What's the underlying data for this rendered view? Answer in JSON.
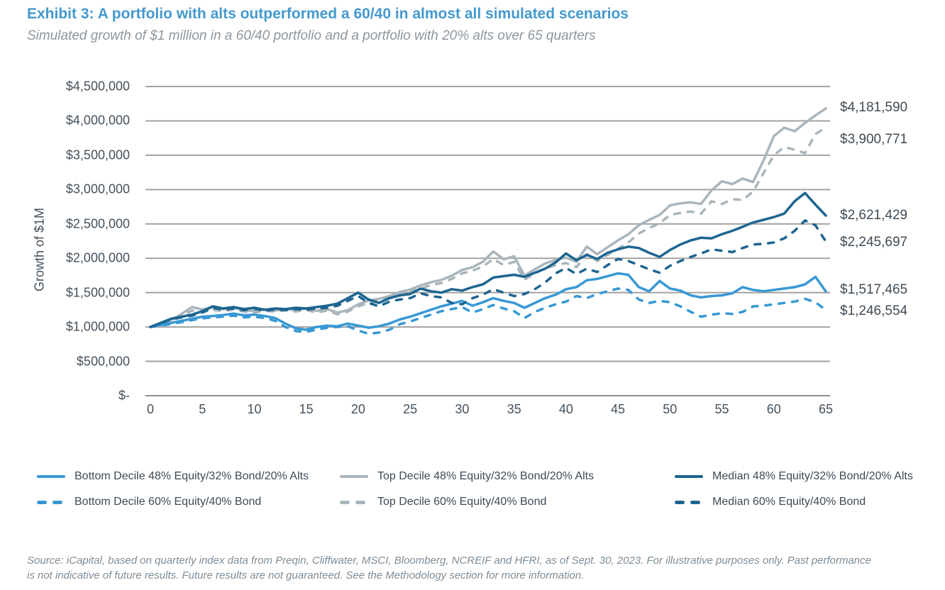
{
  "header": {
    "title": "Exhibit 3: A portfolio with alts outperformed a 60/40 in almost all simulated scenarios",
    "subtitle": "Simulated growth of $1 million in a 60/40 portfolio and a portfolio with 20% alts over 65 quarters"
  },
  "colors": {
    "title_blue": "#4499cf",
    "light_blue_line": "#3898d4",
    "gray_line": "#a9b5bc",
    "dark_blue_line": "#1d6590",
    "gridline": "#a2a2a2",
    "axis_line": "#8d8d8d",
    "axis_text": "#44515c"
  },
  "chart_data": {
    "type": "line",
    "title": "Exhibit 3: A portfolio with alts outperformed a 60/40 in almost all simulated scenarios",
    "subtitle": "Simulated growth of $1 million in a 60/40 portfolio and a portfolio with 20% alts over 65 quarters",
    "xlabel": "",
    "ylabel": "Growth of $1M",
    "xlim": [
      0,
      65
    ],
    "ylim": [
      0,
      4500000
    ],
    "grid": true,
    "legend_position": "bottom",
    "x_start": 0,
    "x_step": 1,
    "x_ticks": [
      0,
      5,
      10,
      15,
      20,
      25,
      30,
      35,
      40,
      45,
      50,
      55,
      60,
      65
    ],
    "y_ticks": [
      {
        "label": "$4,500,000",
        "value": 4500000
      },
      {
        "label": "$4,000,000",
        "value": 4000000
      },
      {
        "label": "$3,500,000",
        "value": 3500000
      },
      {
        "label": "$3,000,000",
        "value": 3000000
      },
      {
        "label": "$2,500,000",
        "value": 2500000
      },
      {
        "label": "$2,000,000",
        "value": 2000000
      },
      {
        "label": "$1,500,000",
        "value": 1500000
      },
      {
        "label": "$1,000,000",
        "value": 1000000
      },
      {
        "label": "$500,000",
        "value": 500000
      },
      {
        "label": "$-",
        "value": 0
      }
    ],
    "series": [
      {
        "name": "Bottom Decile 48% Equity/32% Bond/20% Alts",
        "style": "solid",
        "color": "#3898d4",
        "end_label": "$1,517,465",
        "values": [
          1000000,
          1030000,
          1060000,
          1090000,
          1120000,
          1150000,
          1160000,
          1175000,
          1195000,
          1170000,
          1180000,
          1160000,
          1130000,
          1050000,
          980000,
          960000,
          1000000,
          1020000,
          1010000,
          1050000,
          1020000,
          990000,
          1010000,
          1050000,
          1110000,
          1150000,
          1200000,
          1250000,
          1300000,
          1340000,
          1380000,
          1310000,
          1360000,
          1420000,
          1380000,
          1350000,
          1280000,
          1350000,
          1420000,
          1470000,
          1550000,
          1580000,
          1680000,
          1700000,
          1740000,
          1780000,
          1760000,
          1580000,
          1520000,
          1670000,
          1560000,
          1530000,
          1460000,
          1430000,
          1450000,
          1460000,
          1490000,
          1580000,
          1540000,
          1520000,
          1540000,
          1560000,
          1580000,
          1620000,
          1730000,
          1517465
        ]
      },
      {
        "name": "Top Decile 48% Equity/32% Bond/20% Alts",
        "style": "solid",
        "color": "#a9b5bc",
        "end_label": "$4,181,590",
        "values": [
          1000000,
          1045000,
          1100000,
          1190000,
          1290000,
          1255000,
          1285000,
          1260000,
          1280000,
          1245000,
          1230000,
          1255000,
          1240000,
          1260000,
          1245000,
          1270000,
          1235000,
          1260000,
          1210000,
          1245000,
          1330000,
          1385000,
          1410000,
          1450000,
          1510000,
          1545000,
          1605000,
          1650000,
          1685000,
          1745000,
          1830000,
          1870000,
          1950000,
          2100000,
          1985000,
          2030000,
          1745000,
          1840000,
          1925000,
          1975000,
          2010000,
          1950000,
          2170000,
          2060000,
          2160000,
          2260000,
          2350000,
          2480000,
          2560000,
          2630000,
          2770000,
          2800000,
          2815000,
          2790000,
          2990000,
          3120000,
          3080000,
          3160000,
          3110000,
          3420000,
          3780000,
          3900000,
          3850000,
          3970000,
          4080000,
          4181590
        ]
      },
      {
        "name": "Median 48% Equity/32% Bond/20% Alts",
        "style": "solid",
        "color": "#1d6590",
        "end_label": "$2,621,429",
        "values": [
          1000000,
          1060000,
          1120000,
          1150000,
          1180000,
          1230000,
          1300000,
          1270000,
          1290000,
          1260000,
          1280000,
          1250000,
          1270000,
          1260000,
          1280000,
          1270000,
          1290000,
          1310000,
          1340000,
          1420000,
          1500000,
          1400000,
          1350000,
          1420000,
          1460000,
          1480000,
          1560000,
          1520000,
          1500000,
          1550000,
          1530000,
          1580000,
          1620000,
          1720000,
          1740000,
          1760000,
          1730000,
          1790000,
          1850000,
          1940000,
          2070000,
          1970000,
          2050000,
          1990000,
          2080000,
          2130000,
          2170000,
          2150000,
          2080000,
          2020000,
          2120000,
          2200000,
          2260000,
          2300000,
          2290000,
          2350000,
          2400000,
          2460000,
          2520000,
          2560000,
          2600000,
          2650000,
          2830000,
          2950000,
          2780000,
          2621429
        ]
      },
      {
        "name": "Bottom Decile 60% Equity/40% Bond",
        "style": "dashed",
        "color": "#3898d4",
        "end_label": "$1,246,554",
        "values": [
          1000000,
          1020000,
          1045000,
          1070000,
          1100000,
          1125000,
          1140000,
          1150000,
          1165000,
          1140000,
          1150000,
          1130000,
          1090000,
          1000000,
          940000,
          930000,
          960000,
          990000,
          1000000,
          1010000,
          950000,
          900000,
          920000,
          960000,
          1040000,
          1080000,
          1130000,
          1180000,
          1230000,
          1260000,
          1290000,
          1210000,
          1260000,
          1320000,
          1270000,
          1230000,
          1130000,
          1220000,
          1280000,
          1330000,
          1370000,
          1450000,
          1420000,
          1480000,
          1520000,
          1560000,
          1540000,
          1400000,
          1350000,
          1380000,
          1360000,
          1300000,
          1220000,
          1150000,
          1180000,
          1200000,
          1190000,
          1220000,
          1300000,
          1310000,
          1330000,
          1350000,
          1370000,
          1410000,
          1360000,
          1246554
        ]
      },
      {
        "name": "Top Decile 60% Equity/40% Bond",
        "style": "dashed",
        "color": "#a9b5bc",
        "end_label": "$3,900,771",
        "values": [
          1000000,
          1040000,
          1085000,
          1160000,
          1240000,
          1215000,
          1250000,
          1230000,
          1255000,
          1225000,
          1210000,
          1235000,
          1225000,
          1245000,
          1225000,
          1250000,
          1210000,
          1240000,
          1185000,
          1225000,
          1300000,
          1350000,
          1380000,
          1420000,
          1470000,
          1510000,
          1560000,
          1610000,
          1640000,
          1700000,
          1780000,
          1820000,
          1880000,
          1990000,
          1900000,
          1950000,
          1690000,
          1780000,
          1850000,
          1900000,
          1930000,
          1870000,
          2060000,
          1960000,
          2050000,
          2140000,
          2230000,
          2360000,
          2440000,
          2510000,
          2630000,
          2660000,
          2680000,
          2650000,
          2830000,
          2790000,
          2860000,
          2850000,
          2970000,
          3240000,
          3500000,
          3620000,
          3580000,
          3530000,
          3810000,
          3900771
        ]
      },
      {
        "name": "Median 60% Equity/40% Bond",
        "style": "dashed",
        "color": "#1d6590",
        "end_label": "$2,245,697",
        "values": [
          1000000,
          1055000,
          1110000,
          1140000,
          1165000,
          1210000,
          1280000,
          1250000,
          1270000,
          1245000,
          1265000,
          1235000,
          1255000,
          1245000,
          1260000,
          1250000,
          1270000,
          1280000,
          1310000,
          1380000,
          1450000,
          1350000,
          1300000,
          1370000,
          1400000,
          1420000,
          1490000,
          1450000,
          1430000,
          1350000,
          1330000,
          1420000,
          1470000,
          1550000,
          1500000,
          1450000,
          1480000,
          1550000,
          1650000,
          1780000,
          1860000,
          1770000,
          1850000,
          1800000,
          1900000,
          1990000,
          1960000,
          1900000,
          1840000,
          1790000,
          1890000,
          1960000,
          2020000,
          2070000,
          2130000,
          2110000,
          2090000,
          2150000,
          2200000,
          2210000,
          2230000,
          2290000,
          2400000,
          2550000,
          2480000,
          2245697
        ]
      }
    ]
  },
  "footer": {
    "source_line1": "Source: iCapital, based on quarterly index data from Preqin, Cliffwater, MSCI, Bloomberg, NCREIF and HFRI, as of Sept. 30, 2023. For illustrative purposes only. Past performance",
    "source_line2": "is not indicative of future results. Future results are not guaranteed. See the Methodology section for more information."
  }
}
